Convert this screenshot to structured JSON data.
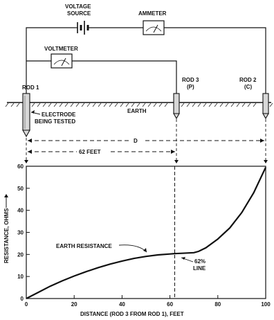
{
  "diagram": {
    "voltage_source": [
      "VOLTAGE",
      "SOURCE"
    ],
    "ammeter": "AMMETER",
    "voltmeter": "VOLTMETER",
    "rod1": "ROD 1",
    "rod3": [
      "ROD 3",
      "(P)"
    ],
    "rod2": [
      "ROD 2",
      "(C)"
    ],
    "earth": "EARTH",
    "electrode": [
      "ELECTRODE",
      "BEING TESTED"
    ],
    "dim_d": "D",
    "dim_62": "62 FEET"
  },
  "chart_data": {
    "type": "line",
    "xlabel": "DISTANCE (ROD 3 FROM ROD 1), FEET",
    "ylabel": "RESISTANCE, OHMS",
    "xlim": [
      0,
      100
    ],
    "ylim": [
      0,
      60
    ],
    "x_ticks": [
      0,
      20,
      40,
      60,
      80,
      100
    ],
    "y_ticks": [
      0,
      10,
      20,
      30,
      40,
      50,
      60
    ],
    "grid": false,
    "series": [
      {
        "name": "EARTH RESISTANCE",
        "x": [
          0,
          5,
          10,
          15,
          20,
          25,
          30,
          35,
          40,
          45,
          50,
          55,
          60,
          62,
          65,
          70,
          72,
          75,
          80,
          85,
          90,
          95,
          100
        ],
        "y": [
          0,
          2.8,
          5.6,
          8.0,
          10.2,
          12.2,
          14.0,
          15.6,
          17.0,
          18.2,
          19.1,
          19.8,
          20.2,
          20.4,
          20.5,
          20.8,
          21.4,
          23.0,
          27.0,
          32.0,
          39.0,
          48.0,
          59.5
        ]
      }
    ],
    "annotations": [
      {
        "text": "EARTH RESISTANCE"
      },
      {
        "text": [
          "62%",
          "LINE"
        ],
        "x": 62
      }
    ]
  }
}
